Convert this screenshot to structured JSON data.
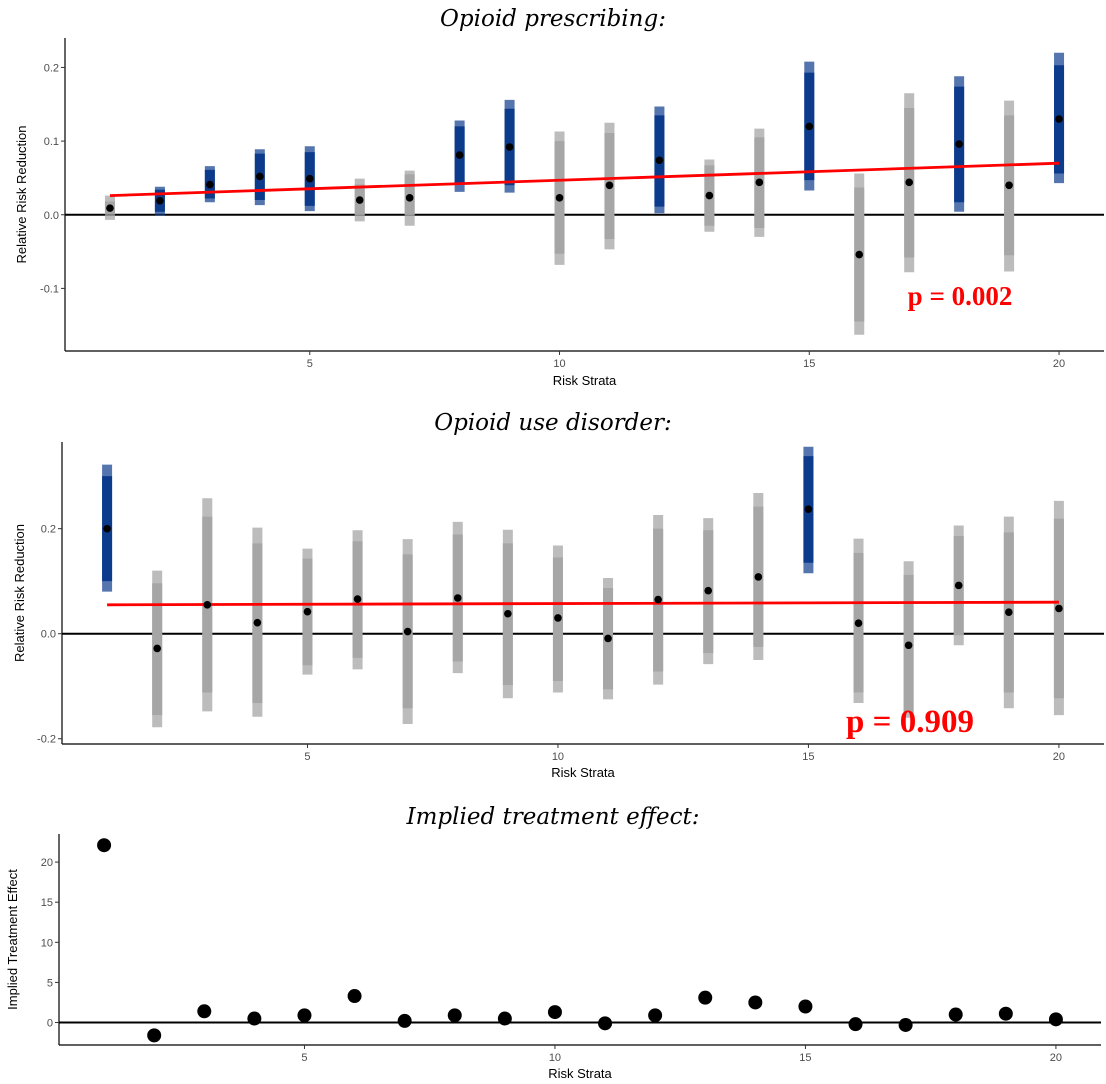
{
  "colors": {
    "significant": "#0d3b8c",
    "nonsignificant": "#a6a6a6",
    "trend": "#ff0000",
    "point": "#000000",
    "zero_line": "#000000"
  },
  "chart_data": [
    {
      "type": "scatter",
      "title": "Opioid prescribing:",
      "xlabel": "Risk Strata",
      "ylabel": "Relative Risk Reduction",
      "xlim": [
        0.1,
        20.9
      ],
      "ylim": [
        -0.185,
        0.24
      ],
      "xticks": [
        "5",
        "10",
        "15",
        "20"
      ],
      "yticks": [
        "0.2",
        "0.1",
        "0.0",
        "-0.1"
      ],
      "annotation": "p = 0.002",
      "trend": {
        "x": [
          1,
          20
        ],
        "y": [
          0.026,
          0.07
        ]
      },
      "x": [
        1,
        2,
        3,
        4,
        5,
        6,
        7,
        8,
        9,
        10,
        11,
        12,
        13,
        14,
        15,
        16,
        17,
        18,
        19,
        20
      ],
      "y": [
        0.009,
        0.019,
        0.041,
        0.052,
        0.049,
        0.02,
        0.023,
        0.081,
        0.092,
        0.023,
        0.04,
        0.074,
        0.026,
        0.044,
        0.12,
        -0.054,
        0.044,
        0.096,
        0.04,
        0.13
      ],
      "inner_lo": [
        0.001,
        0.004,
        0.022,
        0.02,
        0.012,
        0.0,
        0.0,
        0.042,
        0.04,
        -0.053,
        -0.033,
        0.011,
        -0.015,
        -0.018,
        0.047,
        -0.145,
        -0.058,
        0.017,
        -0.055,
        0.056
      ],
      "inner_hi": [
        0.018,
        0.034,
        0.061,
        0.083,
        0.085,
        0.041,
        0.055,
        0.12,
        0.144,
        0.1,
        0.111,
        0.135,
        0.067,
        0.105,
        0.193,
        0.037,
        0.145,
        0.174,
        0.135,
        0.203
      ],
      "outer_lo": [
        -0.007,
        -0.001,
        0.017,
        0.013,
        0.005,
        -0.009,
        -0.015,
        0.031,
        0.03,
        -0.068,
        -0.047,
        0.002,
        -0.023,
        -0.03,
        0.033,
        -0.163,
        -0.078,
        0.004,
        -0.077,
        0.043
      ],
      "outer_hi": [
        0.026,
        0.038,
        0.066,
        0.089,
        0.093,
        0.049,
        0.06,
        0.128,
        0.156,
        0.113,
        0.125,
        0.147,
        0.075,
        0.117,
        0.208,
        0.056,
        0.165,
        0.188,
        0.155,
        0.22
      ],
      "significant": [
        false,
        true,
        true,
        true,
        true,
        false,
        false,
        true,
        true,
        false,
        false,
        true,
        false,
        false,
        true,
        false,
        false,
        true,
        false,
        true
      ]
    },
    {
      "type": "scatter",
      "title": "Opioid use disorder:",
      "xlabel": "Risk Strata",
      "ylabel": "Relative Risk Reduction",
      "xlim": [
        0.1,
        20.9
      ],
      "ylim": [
        -0.21,
        0.365
      ],
      "xticks": [
        "5",
        "10",
        "15",
        "20"
      ],
      "yticks": [
        "0.2",
        "0.0",
        "-0.2"
      ],
      "annotation": "p = 0.909",
      "trend": {
        "x": [
          1,
          20
        ],
        "y": [
          0.055,
          0.06
        ]
      },
      "x": [
        1,
        2,
        3,
        4,
        5,
        6,
        7,
        8,
        9,
        10,
        11,
        12,
        13,
        14,
        15,
        16,
        17,
        18,
        19,
        20
      ],
      "y": [
        0.2,
        -0.028,
        0.055,
        0.021,
        0.042,
        0.066,
        0.004,
        0.068,
        0.038,
        0.03,
        -0.009,
        0.065,
        0.082,
        0.108,
        0.237,
        0.02,
        -0.022,
        0.092,
        0.041,
        0.048
      ],
      "inner_lo": [
        0.1,
        -0.155,
        -0.112,
        -0.132,
        -0.06,
        -0.046,
        -0.142,
        -0.053,
        -0.098,
        -0.09,
        -0.106,
        -0.072,
        -0.037,
        -0.025,
        0.135,
        -0.112,
        -0.15,
        -0.003,
        -0.112,
        -0.123
      ],
      "inner_hi": [
        0.3,
        0.096,
        0.223,
        0.172,
        0.143,
        0.176,
        0.151,
        0.189,
        0.172,
        0.145,
        0.087,
        0.2,
        0.197,
        0.242,
        0.338,
        0.154,
        0.112,
        0.186,
        0.193,
        0.219
      ],
      "outer_lo": [
        0.08,
        -0.178,
        -0.148,
        -0.158,
        -0.078,
        -0.068,
        -0.172,
        -0.075,
        -0.123,
        -0.112,
        -0.125,
        -0.097,
        -0.058,
        -0.05,
        0.115,
        -0.132,
        -0.16,
        -0.022,
        -0.142,
        -0.155
      ],
      "outer_hi": [
        0.322,
        0.12,
        0.258,
        0.202,
        0.162,
        0.197,
        0.18,
        0.213,
        0.198,
        0.168,
        0.106,
        0.226,
        0.22,
        0.268,
        0.356,
        0.181,
        0.138,
        0.206,
        0.223,
        0.253
      ],
      "significant": [
        true,
        false,
        false,
        false,
        false,
        false,
        false,
        false,
        false,
        false,
        false,
        false,
        false,
        false,
        true,
        false,
        false,
        false,
        false,
        false
      ]
    },
    {
      "type": "scatter",
      "title": "Implied treatment effect:",
      "xlabel": "Risk Strata",
      "ylabel": "Implied Treatment Effect",
      "xlim": [
        0.1,
        20.9
      ],
      "ylim": [
        -2.8,
        23.5
      ],
      "xticks": [
        "5",
        "10",
        "15",
        "20"
      ],
      "yticks": [
        "20",
        "15",
        "10",
        "5",
        "0"
      ],
      "x": [
        1,
        2,
        3,
        4,
        5,
        6,
        7,
        8,
        9,
        10,
        11,
        12,
        13,
        14,
        15,
        16,
        17,
        18,
        19,
        20
      ],
      "y": [
        22.1,
        -1.6,
        1.4,
        0.5,
        0.9,
        3.3,
        0.2,
        0.9,
        0.5,
        1.3,
        -0.1,
        0.9,
        3.1,
        2.5,
        2.0,
        -0.2,
        -0.3,
        1.0,
        1.1,
        0.4
      ]
    }
  ]
}
